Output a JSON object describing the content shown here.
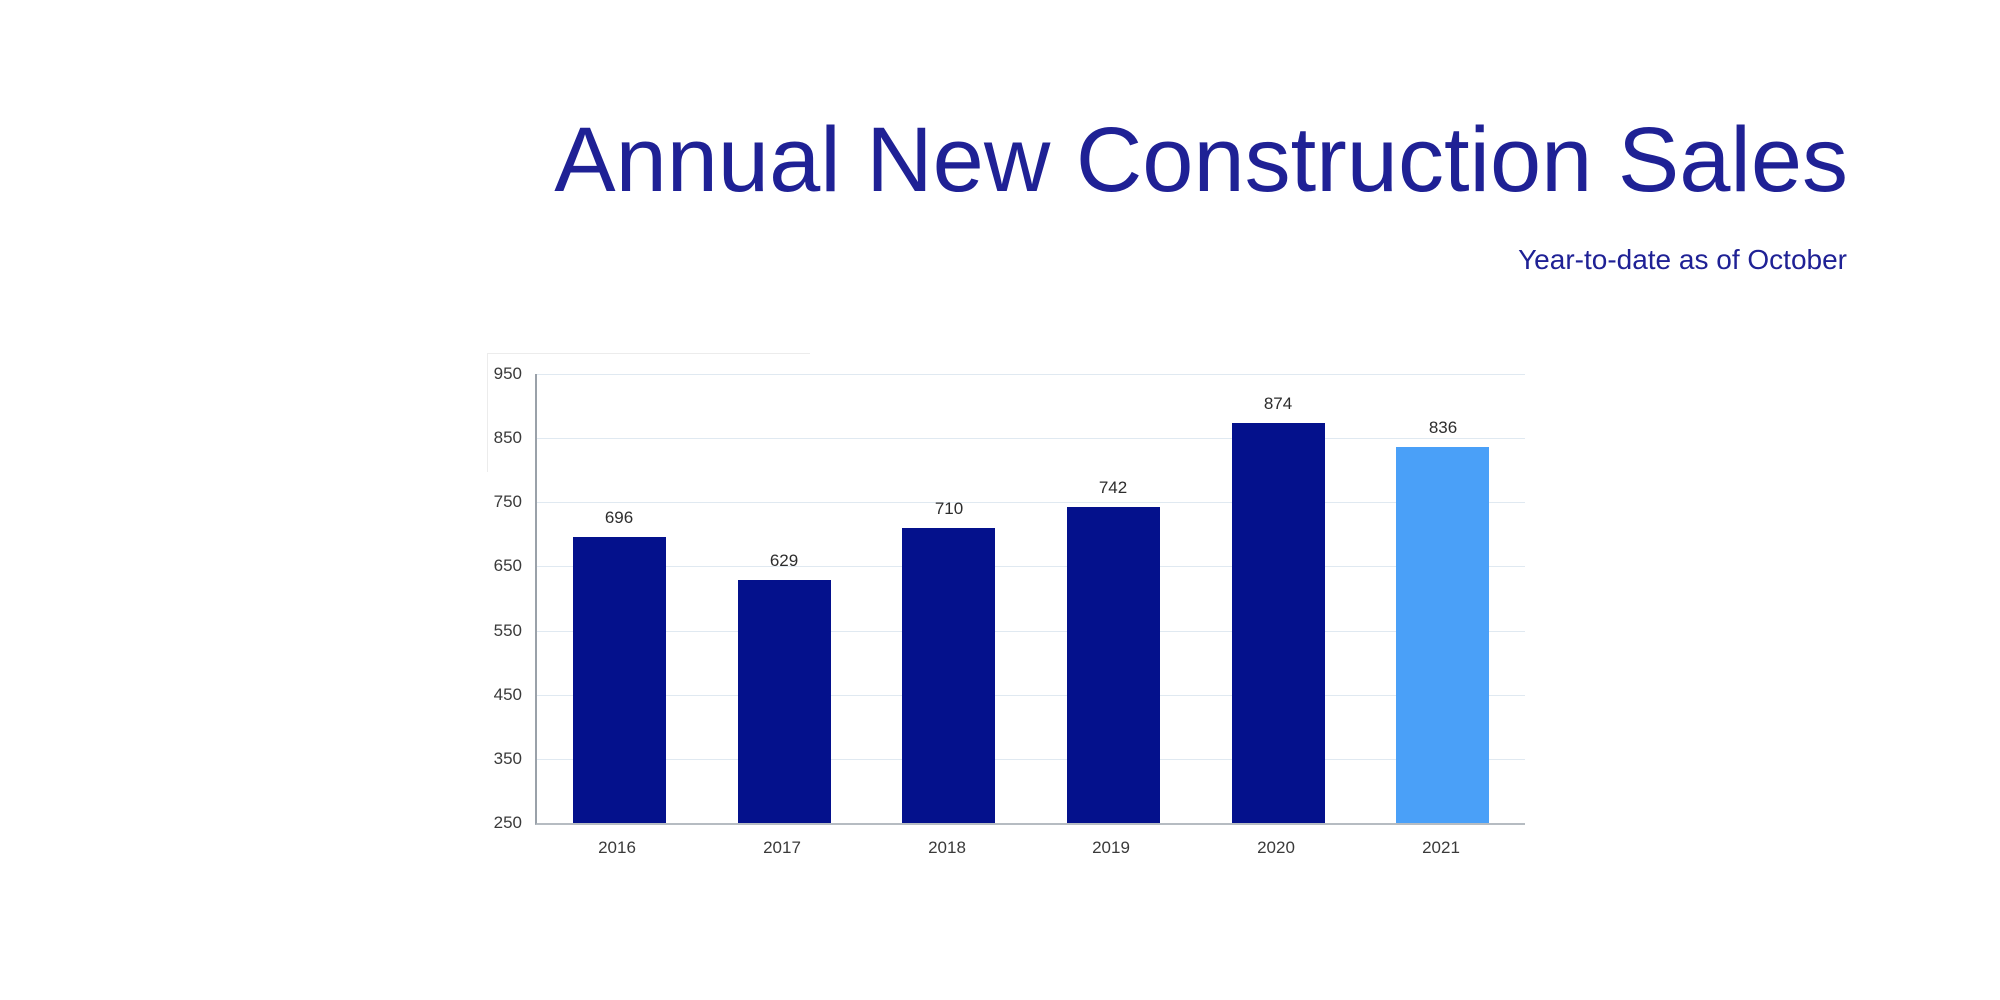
{
  "header": {
    "title": "Annual New Construction Sales",
    "subtitle": "Year-to-date as of October",
    "title_color": "#1f2195"
  },
  "chart_data": {
    "type": "bar",
    "title": "Annual New Construction Sales",
    "subtitle": "Year-to-date as of October",
    "categories": [
      "2016",
      "2017",
      "2018",
      "2019",
      "2020",
      "2021"
    ],
    "values": [
      696,
      629,
      710,
      742,
      874,
      836
    ],
    "bar_colors": [
      "#04118c",
      "#04118c",
      "#04118c",
      "#04118c",
      "#04118c",
      "#4aa0f8"
    ],
    "highlighted_category": "2021",
    "ylim": [
      250,
      950
    ],
    "yticks": [
      250,
      350,
      450,
      550,
      650,
      750,
      850,
      950
    ],
    "grid": true,
    "legend": "none",
    "data_labels_shown": true,
    "xlabel": "",
    "ylabel": ""
  },
  "colors": {
    "bar_dark": "#04118c",
    "bar_highlight": "#4aa0f8",
    "title_text": "#1f2195",
    "gridline": "#e0e9f1",
    "y_axis_line": "#9aa1a9",
    "x_axis_line": "#b6bcc2",
    "tick_text": "#3a3a3a",
    "value_text": "#2d2d2d"
  }
}
